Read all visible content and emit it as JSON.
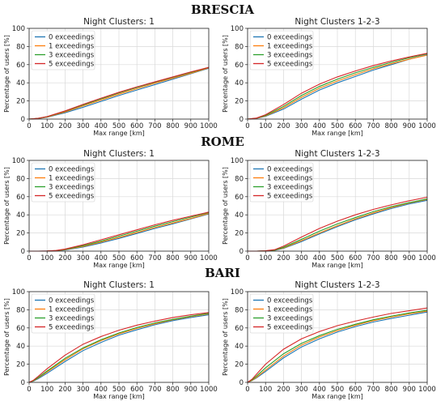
{
  "figure": {
    "city_titles": [
      "BRESCIA",
      "ROME",
      "BARI"
    ]
  },
  "series_colors": {
    "0 exceedings": "#1f77b4",
    "1 exceedings": "#ff7f0e",
    "3 exceedings": "#2ca02c",
    "5 exceedings": "#d62728"
  },
  "chart_data": [
    {
      "type": "line",
      "city": "BRESCIA",
      "title": "Night Clusters: 1",
      "xlabel": "Max range [km]",
      "ylabel": "Percentage of users [%]",
      "xlim": [
        0,
        1000
      ],
      "ylim": [
        0,
        100
      ],
      "xticks": [
        0,
        100,
        200,
        300,
        400,
        500,
        600,
        700,
        800,
        900,
        1000
      ],
      "yticks": [
        0,
        20,
        40,
        60,
        80,
        100
      ],
      "grid": true,
      "legend": "top-left",
      "x": [
        0,
        50,
        100,
        200,
        300,
        400,
        500,
        600,
        700,
        800,
        900,
        1000
      ],
      "series": [
        {
          "name": "0 exceedings",
          "values": [
            0,
            0.6,
            2,
            7,
            13,
            19.5,
            26,
            32,
            38,
            44,
            50,
            56
          ]
        },
        {
          "name": "1 exceedings",
          "values": [
            0,
            0.7,
            2.3,
            7.8,
            14.5,
            21,
            27.5,
            33.5,
            39.5,
            45,
            50.5,
            56.5
          ]
        },
        {
          "name": "3 exceedings",
          "values": [
            0,
            0.8,
            2.6,
            8.6,
            15.5,
            22.2,
            28.8,
            34.8,
            40.5,
            46,
            51.5,
            57
          ]
        },
        {
          "name": "5 exceedings",
          "values": [
            0,
            0.9,
            2.8,
            9,
            16.2,
            23,
            29.5,
            35.5,
            41,
            46.5,
            52,
            57
          ]
        }
      ]
    },
    {
      "type": "line",
      "city": "BRESCIA",
      "title": "Night Clusters 1-2-3",
      "xlabel": "Max range [km]",
      "ylabel": "Percentage of users [%]",
      "xlim": [
        0,
        1000
      ],
      "ylim": [
        0,
        100
      ],
      "xticks": [
        0,
        100,
        200,
        300,
        400,
        500,
        600,
        700,
        800,
        900,
        1000
      ],
      "yticks": [
        0,
        20,
        40,
        60,
        80,
        100
      ],
      "grid": true,
      "legend": "top-left",
      "x": [
        0,
        50,
        100,
        200,
        300,
        400,
        500,
        600,
        700,
        800,
        900,
        1000
      ],
      "series": [
        {
          "name": "0 exceedings",
          "values": [
            0,
            0.8,
            3,
            11,
            22,
            32,
            40,
            47,
            54,
            60,
            66,
            71
          ]
        },
        {
          "name": "1 exceedings",
          "values": [
            0,
            0.9,
            3.5,
            12.5,
            24,
            34,
            42,
            49,
            55.5,
            61,
            66,
            70.5
          ]
        },
        {
          "name": "3 exceedings",
          "values": [
            0,
            1,
            4,
            14,
            26,
            36,
            44,
            51,
            57,
            62.5,
            67.5,
            72
          ]
        },
        {
          "name": "5 exceedings",
          "values": [
            0,
            1.2,
            4.8,
            16,
            28.5,
            38.5,
            46.5,
            53,
            59,
            64,
            68.5,
            72.5
          ]
        }
      ]
    },
    {
      "type": "line",
      "city": "ROME",
      "title": "Night Clusters: 1",
      "xlabel": "Max range [km]",
      "ylabel": "Percentage of users [%]",
      "xlim": [
        0,
        1000
      ],
      "ylim": [
        0,
        100
      ],
      "xticks": [
        0,
        100,
        200,
        300,
        400,
        500,
        600,
        700,
        800,
        900,
        1000
      ],
      "yticks": [
        0,
        20,
        40,
        60,
        80,
        100
      ],
      "grid": true,
      "legend": "top-left",
      "x": [
        0,
        50,
        100,
        150,
        200,
        300,
        400,
        500,
        600,
        700,
        800,
        900,
        1000
      ],
      "series": [
        {
          "name": "0 exceedings",
          "values": [
            0,
            0,
            0.1,
            0.4,
            1.3,
            4.5,
            9,
            14,
            19.5,
            25,
            30,
            35.5,
            41
          ]
        },
        {
          "name": "1 exceedings",
          "values": [
            0,
            0,
            0.1,
            0.5,
            1.6,
            5.2,
            10,
            15,
            20.5,
            26,
            31,
            36,
            41.5
          ]
        },
        {
          "name": "3 exceedings",
          "values": [
            0,
            0,
            0.1,
            0.6,
            1.9,
            6,
            11,
            16.5,
            22,
            27.5,
            32.5,
            37.5,
            42.5
          ]
        },
        {
          "name": "5 exceedings",
          "values": [
            0,
            0,
            0.2,
            0.7,
            2.3,
            7,
            12.5,
            18,
            23.5,
            29,
            34,
            38.5,
            43
          ]
        }
      ]
    },
    {
      "type": "line",
      "city": "ROME",
      "title": "Night Clusters 1-2-3",
      "xlabel": "Max range [km]",
      "ylabel": "Percentage of users [%]",
      "xlim": [
        0,
        1000
      ],
      "ylim": [
        0,
        100
      ],
      "xticks": [
        0,
        100,
        200,
        300,
        400,
        500,
        600,
        700,
        800,
        900,
        1000
      ],
      "yticks": [
        0,
        20,
        40,
        60,
        80,
        100
      ],
      "grid": true,
      "legend": "top-left",
      "x": [
        0,
        50,
        100,
        150,
        200,
        300,
        400,
        500,
        600,
        700,
        800,
        900,
        1000
      ],
      "series": [
        {
          "name": "0 exceedings",
          "values": [
            0,
            0,
            0.2,
            0.8,
            3,
            10.5,
            19,
            27,
            34.5,
            41,
            47,
            52,
            56
          ]
        },
        {
          "name": "1 exceedings",
          "values": [
            0,
            0,
            0.2,
            1,
            3.5,
            11.5,
            20,
            28,
            35.5,
            42,
            48,
            53,
            57
          ]
        },
        {
          "name": "3 exceedings",
          "values": [
            0,
            0,
            0.3,
            1.2,
            4.2,
            13,
            22,
            30,
            37,
            43.5,
            49,
            53.5,
            57.5
          ]
        },
        {
          "name": "5 exceedings",
          "values": [
            0,
            0,
            0.4,
            1.6,
            5.5,
            15.5,
            25,
            33,
            40,
            46,
            51,
            55.5,
            59.5
          ]
        }
      ]
    },
    {
      "type": "line",
      "city": "BARI",
      "title": "Night Clusters: 1",
      "xlabel": "Max range [km]",
      "ylabel": "Percentage of users [%]",
      "xlim": [
        0,
        1000
      ],
      "ylim": [
        0,
        100
      ],
      "xticks": [
        0,
        100,
        200,
        300,
        400,
        500,
        600,
        700,
        800,
        900,
        1000
      ],
      "yticks": [
        0,
        20,
        40,
        60,
        80,
        100
      ],
      "grid": true,
      "legend": "top-left",
      "x": [
        0,
        25,
        50,
        100,
        200,
        300,
        400,
        500,
        600,
        700,
        800,
        900,
        1000
      ],
      "series": [
        {
          "name": "0 exceedings",
          "values": [
            0,
            1.5,
            4,
            10,
            23,
            35,
            44,
            52,
            58,
            63.5,
            68,
            71.5,
            74.5
          ]
        },
        {
          "name": "1 exceedings",
          "values": [
            0,
            1.8,
            4.8,
            11.5,
            25,
            37,
            46,
            53.5,
            59.5,
            64.5,
            69,
            72.5,
            75.5
          ]
        },
        {
          "name": "3 exceedings",
          "values": [
            0,
            2,
            5.3,
            12.5,
            26.5,
            38,
            47,
            54.5,
            60.5,
            65.5,
            69.5,
            73,
            76
          ]
        },
        {
          "name": "5 exceedings",
          "values": [
            0,
            2.5,
            6.5,
            15,
            30,
            42,
            50.5,
            57.5,
            63,
            67.5,
            71.5,
            74.5,
            77
          ]
        }
      ]
    },
    {
      "type": "line",
      "city": "BARI",
      "title": "Night Clusters 1-2-3",
      "xlabel": "Max range [km]",
      "ylabel": "Percentage of users [%]",
      "xlim": [
        0,
        1000
      ],
      "ylim": [
        0,
        100
      ],
      "xticks": [
        0,
        100,
        200,
        300,
        400,
        500,
        600,
        700,
        800,
        900,
        1000
      ],
      "yticks": [
        0,
        20,
        40,
        60,
        80,
        100
      ],
      "grid": true,
      "legend": "top-left",
      "x": [
        0,
        25,
        50,
        100,
        200,
        300,
        400,
        500,
        600,
        700,
        800,
        900,
        1000
      ],
      "series": [
        {
          "name": "0 exceedings",
          "values": [
            0,
            2,
            5,
            12,
            27,
            39,
            48,
            55.5,
            61.5,
            66.5,
            70.5,
            74,
            77.5
          ]
        },
        {
          "name": "1 exceedings",
          "values": [
            0,
            2.2,
            5.6,
            13.5,
            29,
            41,
            50,
            57,
            63,
            68,
            72,
            75.5,
            78.5
          ]
        },
        {
          "name": "3 exceedings",
          "values": [
            0,
            2.8,
            7,
            16,
            31.5,
            43,
            51.5,
            58.5,
            64,
            69,
            73,
            76.5,
            79.5
          ]
        },
        {
          "name": "5 exceedings",
          "values": [
            0,
            3.5,
            9,
            20,
            36.5,
            48,
            56,
            62.5,
            67.5,
            72,
            76,
            79,
            82
          ]
        }
      ]
    }
  ]
}
